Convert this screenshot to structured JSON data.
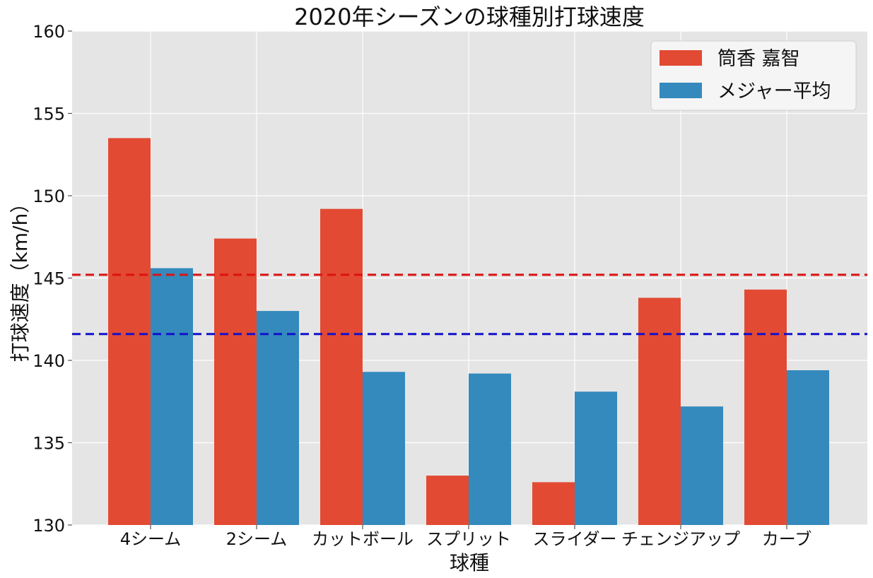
{
  "chart_data": {
    "type": "bar",
    "title": "2020年シーズンの球種別打球速度",
    "xlabel": "球種",
    "ylabel": "打球速度（km/h）",
    "categories": [
      "4シーム",
      "2シーム",
      "カットボール",
      "スプリット",
      "スライダー",
      "チェンジアップ",
      "カーブ"
    ],
    "series": [
      {
        "name": "筒香 嘉智",
        "color": "#E24A33",
        "values": [
          153.5,
          147.4,
          149.2,
          133.0,
          132.6,
          143.8,
          144.3
        ]
      },
      {
        "name": "メジャー平均",
        "color": "#348ABD",
        "values": [
          145.6,
          143.0,
          139.3,
          139.2,
          138.1,
          137.2,
          139.4
        ]
      }
    ],
    "reference_lines": [
      {
        "value": 145.2,
        "color": "#DD1111",
        "style": "dashed"
      },
      {
        "value": 141.6,
        "color": "#1111CC",
        "style": "dashed"
      }
    ],
    "ylim": [
      130,
      160
    ],
    "yticks": [
      130,
      135,
      140,
      145,
      150,
      155,
      160
    ],
    "grid": true,
    "legend_position": "top-right",
    "background": "#E5E5E5"
  }
}
